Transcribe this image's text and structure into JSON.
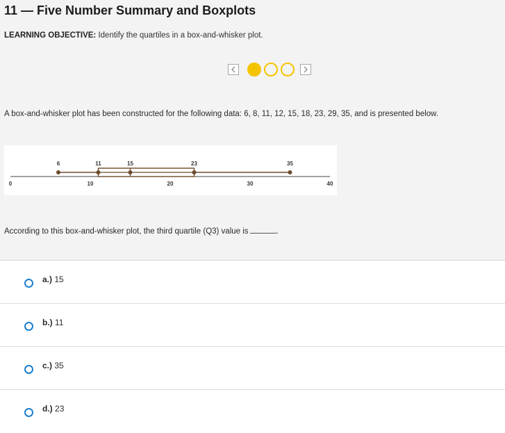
{
  "header": {
    "title": "11 — Five Number Summary and Boxplots",
    "objective_label": "LEARNING OBJECTIVE:",
    "objective_text": "Identify the quartiles in a box-and-whisker plot."
  },
  "pager": {
    "current": 1,
    "total": 4
  },
  "prompt": "A box-and-whisker plot has been constructed for the following data: 6, 8, 11, 12, 15, 18, 23, 29, 35, and is presented below.",
  "chart_data": {
    "type": "boxplot",
    "axis_ticks": [
      0,
      10,
      20,
      30,
      40
    ],
    "xlim": [
      0,
      40
    ],
    "summary": {
      "min": 6,
      "q1": 11,
      "median": 15,
      "q3": 23,
      "max": 35
    },
    "labels": [
      "6",
      "11",
      "15",
      "23",
      "35"
    ],
    "colors": {
      "plot": "#6b4a2b"
    }
  },
  "question": "According to this box-and-whisker plot, the third quartile (Q3) value is",
  "options": [
    {
      "letter": "a.)",
      "value": "15"
    },
    {
      "letter": "b.)",
      "value": "11"
    },
    {
      "letter": "c.)",
      "value": "35"
    },
    {
      "letter": "d.)",
      "value": "23"
    }
  ],
  "colors": {
    "accent_yellow": "#f5c400",
    "radio_blue": "#1d7fd1"
  }
}
